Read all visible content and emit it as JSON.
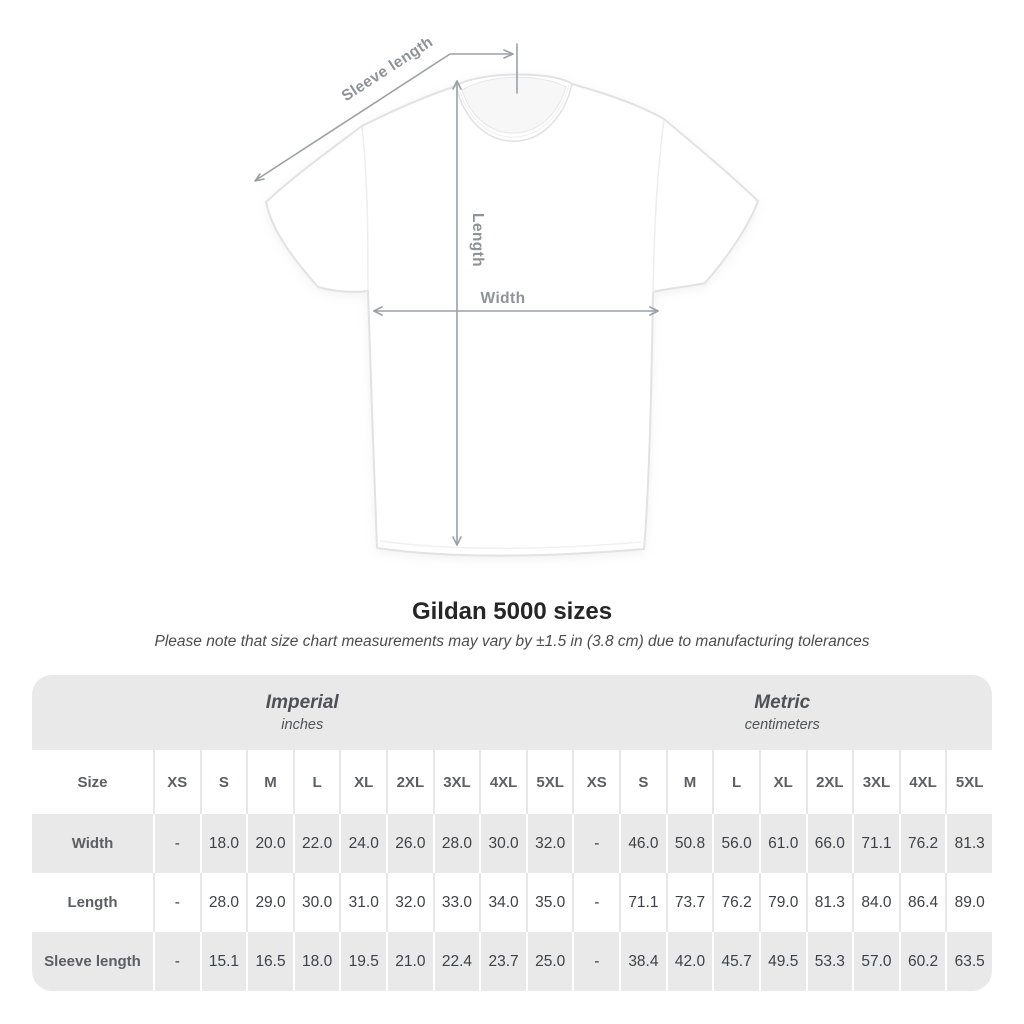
{
  "page": {
    "title": "Gildan 5000 sizes",
    "tolerance_note": "Please note that size chart measurements may vary by ±1.5 in (3.8 cm) due to manufacturing tolerances"
  },
  "diagram": {
    "sleeve_length_label": "Sleeve length",
    "length_label": "Length",
    "width_label": "Width",
    "line_color": "#9aa0a5",
    "label_color": "#8e9398",
    "shirt_color": "#ffffff"
  },
  "table": {
    "unit_groups": [
      {
        "name": "Imperial",
        "unit": "inches"
      },
      {
        "name": "Metric",
        "unit": "centimeters"
      }
    ],
    "size_col_header": "Size",
    "size_headers_imperial": [
      "XS",
      "S",
      "M",
      "L",
      "XL",
      "2XL",
      "3XL",
      "4XL",
      "5XL"
    ],
    "size_headers_metric": [
      "XS",
      "S",
      "M",
      "L",
      "XL",
      "2XL",
      "3XL",
      "4XL",
      "5XL"
    ],
    "rows": [
      {
        "label": "Width",
        "imperial": [
          "-",
          "18.0",
          "20.0",
          "22.0",
          "24.0",
          "26.0",
          "28.0",
          "30.0",
          "32.0"
        ],
        "metric": [
          "-",
          "46.0",
          "50.8",
          "56.0",
          "61.0",
          "66.0",
          "71.1",
          "76.2",
          "81.3"
        ]
      },
      {
        "label": "Length",
        "imperial": [
          "-",
          "28.0",
          "29.0",
          "30.0",
          "31.0",
          "32.0",
          "33.0",
          "34.0",
          "35.0"
        ],
        "metric": [
          "-",
          "71.1",
          "73.7",
          "76.2",
          "79.0",
          "81.3",
          "84.0",
          "86.4",
          "89.0"
        ]
      },
      {
        "label": "Sleeve length",
        "imperial": [
          "-",
          "15.1",
          "16.5",
          "18.0",
          "19.5",
          "21.0",
          "22.4",
          "23.7",
          "25.0"
        ],
        "metric": [
          "-",
          "38.4",
          "42.0",
          "45.7",
          "49.5",
          "53.3",
          "57.0",
          "60.2",
          "63.5"
        ]
      }
    ],
    "colors": {
      "band_gray": "#e9e9ea",
      "separator_on_white": "#e7e7e8",
      "separator_on_gray": "#ffffff",
      "header_text": "#5b5f64",
      "value_text": "#3e4145"
    }
  }
}
